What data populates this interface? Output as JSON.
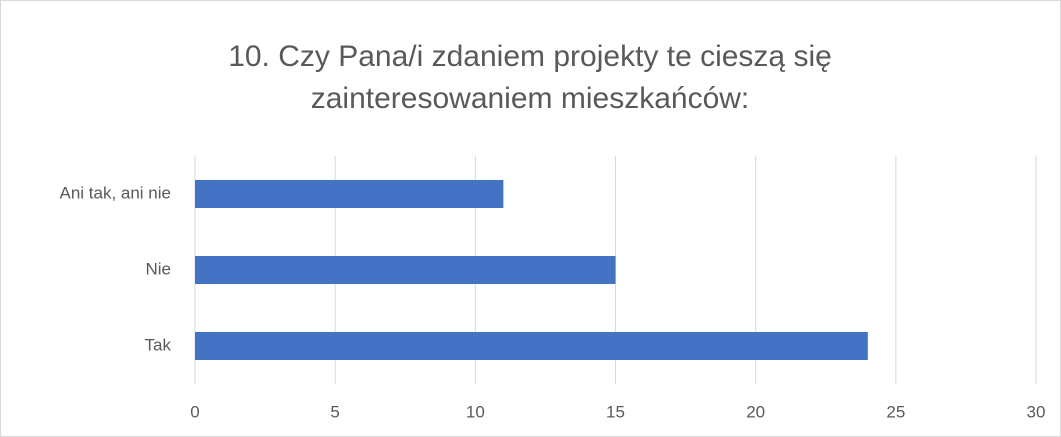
{
  "chart_data": {
    "type": "bar",
    "orientation": "horizontal",
    "title": "10. Czy Pana/i zdaniem projekty te cieszą się zainteresowaniem mieszkańców:",
    "categories": [
      "Tak",
      "Nie",
      "Ani tak, ani nie"
    ],
    "values": [
      24,
      15,
      11
    ],
    "color": "#4472c4",
    "xlim": [
      0,
      30
    ],
    "xticks": [
      0,
      5,
      10,
      15,
      20,
      25,
      30
    ],
    "grid": true
  }
}
